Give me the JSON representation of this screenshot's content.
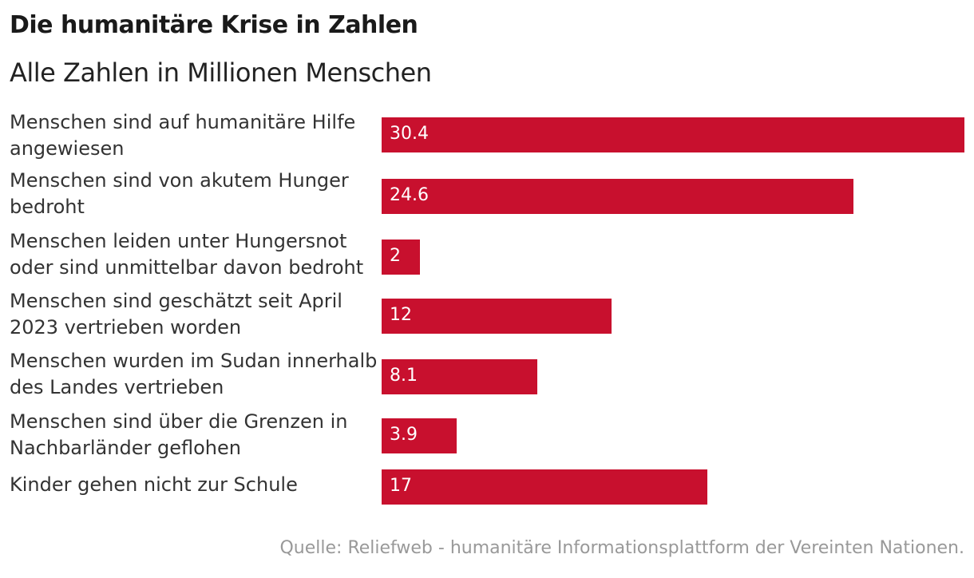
{
  "header": {
    "title": "Die humanitäre Krise in Zahlen",
    "subtitle": "Alle Zahlen in Millionen Menschen"
  },
  "footer": {
    "source": "Quelle: Reliefweb - humanitäre Informationsplattform der Vereinten Nationen."
  },
  "colors": {
    "bar": "#c8102e",
    "bar_text": "#ffffff",
    "source_text": "#999999"
  },
  "chart_data": {
    "type": "bar",
    "orientation": "horizontal",
    "categories": [
      "Menschen sind auf humanitäre Hilfe angewiesen",
      "Menschen sind von akutem Hunger bedroht",
      "Menschen leiden unter Hungersnot oder sind unmittelbar davon bedroht",
      "Menschen sind geschätzt seit April 2023 vertrieben worden",
      "Menschen wurden im Sudan innerhalb des Landes vertrieben",
      "Menschen sind über die Grenzen in Nachbarländer geflohen",
      "Kinder gehen nicht zur Schule"
    ],
    "values": [
      30.4,
      24.6,
      2,
      12,
      8.1,
      3.9,
      17
    ],
    "value_labels": [
      "30.4",
      "24.6",
      "2",
      "12",
      "8.1",
      "3.9",
      "17"
    ],
    "xlim": [
      0,
      30.4
    ],
    "grid": false,
    "legend": "none"
  }
}
